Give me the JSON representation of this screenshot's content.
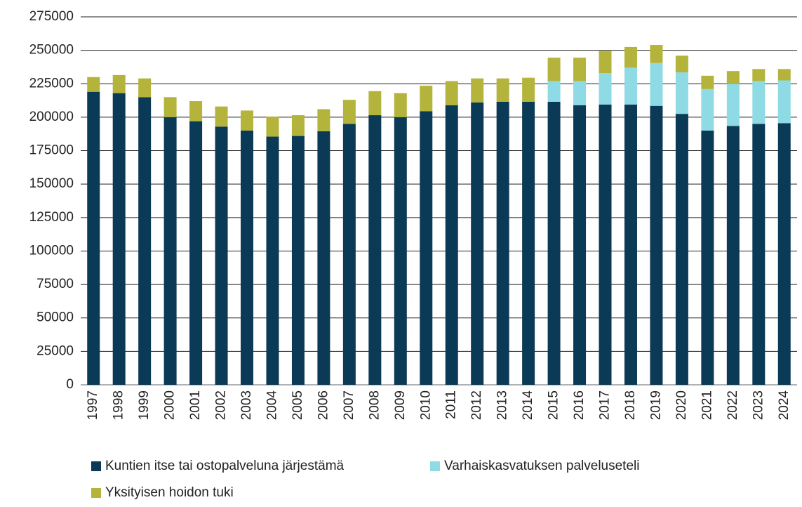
{
  "chart_data": {
    "type": "stacked_bar",
    "categories": [
      "1997",
      "1998",
      "1999",
      "2000",
      "2001",
      "2002",
      "2003",
      "2004",
      "2005",
      "2006",
      "2007",
      "2008",
      "2009",
      "2010",
      "2011",
      "2012",
      "2013",
      "2014",
      "2015",
      "2016",
      "2017",
      "2018",
      "2019",
      "2020",
      "2021",
      "2022",
      "2023",
      "2024"
    ],
    "series": [
      {
        "name": "Kuntien itse tai ostopalveluna järjestämä",
        "color": "#0b3a56",
        "values": [
          219000,
          218000,
          215000,
          200000,
          197000,
          193000,
          190000,
          185500,
          186000,
          189500,
          195000,
          201500,
          200000,
          204500,
          209000,
          211000,
          211500,
          211500,
          211500,
          209000,
          209500,
          209500,
          208500,
          202500,
          190000,
          193500,
          195000,
          195500
        ]
      },
      {
        "name": "Varhaiskasvatuksen palveluseteli",
        "color": "#8fdbe5",
        "values": [
          0,
          0,
          0,
          0,
          0,
          0,
          0,
          0,
          0,
          0,
          0,
          0,
          0,
          0,
          0,
          0,
          0,
          0,
          15500,
          18000,
          23500,
          27500,
          32000,
          31000,
          31000,
          31500,
          32000,
          32000
        ]
      },
      {
        "name": "Yksityisen hoidon tuki",
        "color": "#b4b43c",
        "values": [
          11000,
          13500,
          14000,
          15000,
          15000,
          15000,
          15000,
          15000,
          15500,
          16500,
          18000,
          18000,
          18000,
          19000,
          18000,
          18000,
          17500,
          18000,
          17500,
          17500,
          16500,
          15500,
          13500,
          12500,
          10000,
          9500,
          9000,
          8500
        ]
      }
    ],
    "ylim": [
      0,
      275000
    ],
    "yticks": [
      0,
      25000,
      50000,
      75000,
      100000,
      125000,
      150000,
      175000,
      200000,
      225000,
      250000,
      275000
    ],
    "grid": true
  }
}
